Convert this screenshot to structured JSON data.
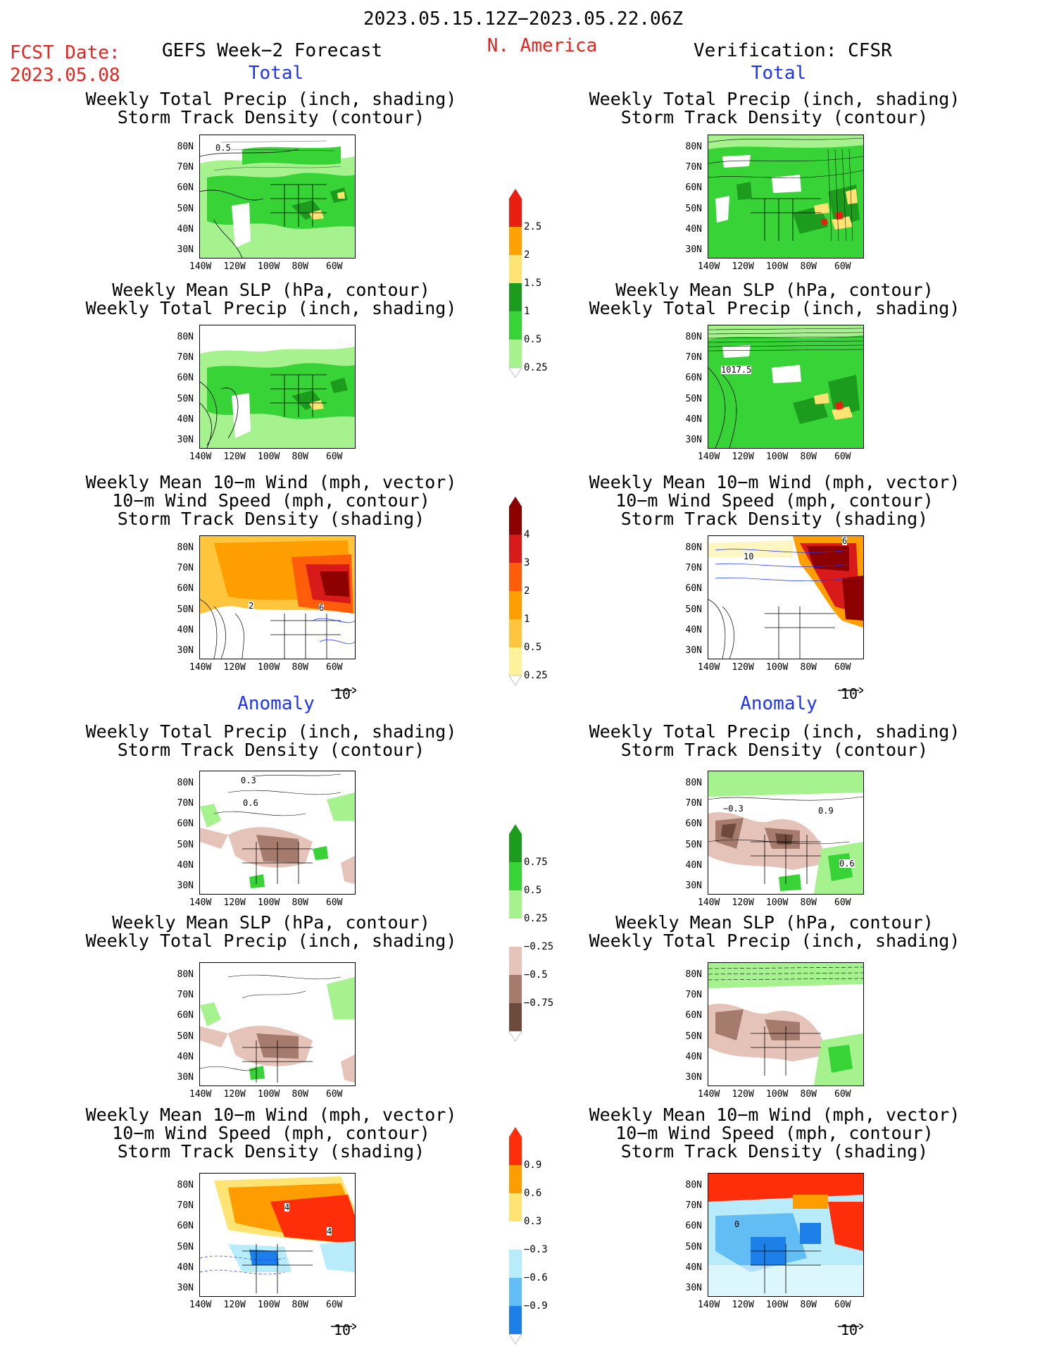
{
  "header": {
    "period": "2023.05.15.12Z−2023.05.22.06Z",
    "fcst_label": "FCST Date:",
    "fcst_date": "2023.05.08",
    "left_title": "GEFS Week−2 Forecast",
    "region": "N. America",
    "right_title": "Verification: CFSR"
  },
  "sections": {
    "total": "Total",
    "anomaly": "Anomaly"
  },
  "panel_titles": {
    "precip_storm": "Weekly Total Precip (inch, shading)\nStorm Track Density (contour)",
    "slp_precip": "Weekly Mean SLP (hPa, contour)\nWeekly Total Precip (inch, shading)",
    "wind_storm": "Weekly Mean 10−m Wind (mph, vector)\n10−m Wind Speed (mph, contour)\nStorm Track Density (shading)"
  },
  "axes": {
    "lat_ticks": [
      "80N",
      "70N",
      "60N",
      "50N",
      "40N",
      "30N"
    ],
    "lon_ticks": [
      "140W",
      "120W",
      "100W",
      "80W",
      "60W"
    ]
  },
  "vector_reference": "10",
  "contour_labels": {
    "fc_total_precip": "0.5",
    "vf_total_slp": "1017.5",
    "fc_total_wind_a": "2",
    "fc_total_wind_b": "6",
    "vf_total_wind_a": "10",
    "vf_total_wind_b": "6",
    "fc_anom_precip_a": "0.3",
    "fc_anom_precip_b": "0.6",
    "vf_anom_precip_a": "−0.3",
    "vf_anom_precip_b": "0.9",
    "vf_anom_precip_c": "0.6",
    "fc_anom_wind_a": "4",
    "fc_anom_wind_b": "4",
    "vf_anom_wind_a": "0"
  },
  "colorbars": {
    "total_precip": {
      "labels": [
        "2.5",
        "2",
        "1.5",
        "1",
        "0.5",
        "0.25"
      ],
      "colors": [
        "#e81e10",
        "#ffa100",
        "#ffe373",
        "#1c9b1c",
        "#37d337",
        "#a6f28f"
      ]
    },
    "total_storm": {
      "labels": [
        "4",
        "3",
        "2",
        "1",
        "0.5",
        "0.25"
      ],
      "colors": [
        "#8c0000",
        "#d81a1a",
        "#ff5d0a",
        "#ff9e00",
        "#ffc53d",
        "#fff29a"
      ]
    },
    "anomaly_precip": {
      "labels": [
        "0.75",
        "0.5",
        "0.25",
        "−0.25",
        "−0.5",
        "−0.75"
      ],
      "colors": [
        "#1c9b1c",
        "#37d337",
        "#a6f28f",
        "#ffffff",
        "#e6c3b8",
        "#a47b6d",
        "#6e4a3c"
      ]
    },
    "anomaly_storm": {
      "labels": [
        "0.9",
        "0.6",
        "0.3",
        "−0.3",
        "−0.6",
        "−0.9"
      ],
      "colors": [
        "#ff2e0a",
        "#ff9d00",
        "#ffe373",
        "#ffffff",
        "#b9ecfa",
        "#62bdf5",
        "#1d7fe8"
      ]
    }
  }
}
